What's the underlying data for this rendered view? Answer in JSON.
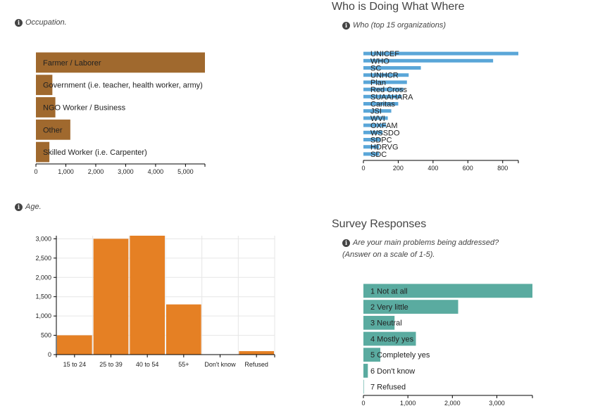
{
  "occupation": {
    "label": "Occupation.",
    "chart_data": {
      "type": "bar",
      "orientation": "horizontal",
      "categories": [
        "Farmer / Laborer",
        "Government (i.e. teacher, health worker, army)",
        "NGO Worker / Business",
        "Other",
        "Skilled Worker (i.e. Carpenter)"
      ],
      "values": [
        5650,
        550,
        650,
        1150,
        450
      ],
      "xlim": [
        0,
        5650
      ],
      "ticks": [
        "0",
        "1,000",
        "2,000",
        "3,000",
        "4,000",
        "5,000"
      ],
      "color": "#a0692e"
    }
  },
  "who": {
    "title": "Who is Doing What Where",
    "label": "Who (top 15 organizations)",
    "chart_data": {
      "type": "bar",
      "orientation": "horizontal",
      "categories": [
        "UNICEF",
        "WHO",
        "SC",
        "UNHCR",
        "Plan",
        "Red Cross",
        "SUAAHARA",
        "Caritas",
        "JSI",
        "WVI",
        "OXFAM",
        "WSSDO",
        "SDPC",
        "HDRVG",
        "SDC"
      ],
      "values": [
        890,
        745,
        330,
        260,
        250,
        230,
        220,
        200,
        160,
        140,
        130,
        110,
        100,
        90,
        90
      ],
      "xlim": [
        0,
        890
      ],
      "ticks": [
        "0",
        "200",
        "400",
        "600",
        "800"
      ],
      "color": "#5aa6d8"
    }
  },
  "age": {
    "label": "Age.",
    "chart_data": {
      "type": "bar",
      "categories": [
        "15 to 24",
        "25 to 39",
        "40 to 54",
        "55+",
        "Don't know",
        "Refused"
      ],
      "values": [
        500,
        3000,
        3080,
        1300,
        0,
        90
      ],
      "ylim": [
        0,
        3080
      ],
      "ticks": [
        "0",
        "500",
        "1,000",
        "1,500",
        "2,000",
        "2,500",
        "3,000"
      ],
      "color": "#e58024"
    }
  },
  "survey": {
    "title": "Survey Responses",
    "label": "Are your main problems being addressed? (Answer on a scale of 1-5).",
    "chart_data": {
      "type": "bar",
      "orientation": "horizontal",
      "categories": [
        "1 Not at all",
        "2 Very little",
        "3 Neutral",
        "4 Mostly yes",
        "5 Completely yes",
        "6 Don't know",
        "7 Refused"
      ],
      "values": [
        3800,
        2130,
        700,
        1180,
        380,
        100,
        10
      ],
      "xlim": [
        0,
        3800
      ],
      "ticks": [
        "0",
        "1,000",
        "2,000",
        "3,000"
      ],
      "color": "#5aaba0"
    }
  }
}
